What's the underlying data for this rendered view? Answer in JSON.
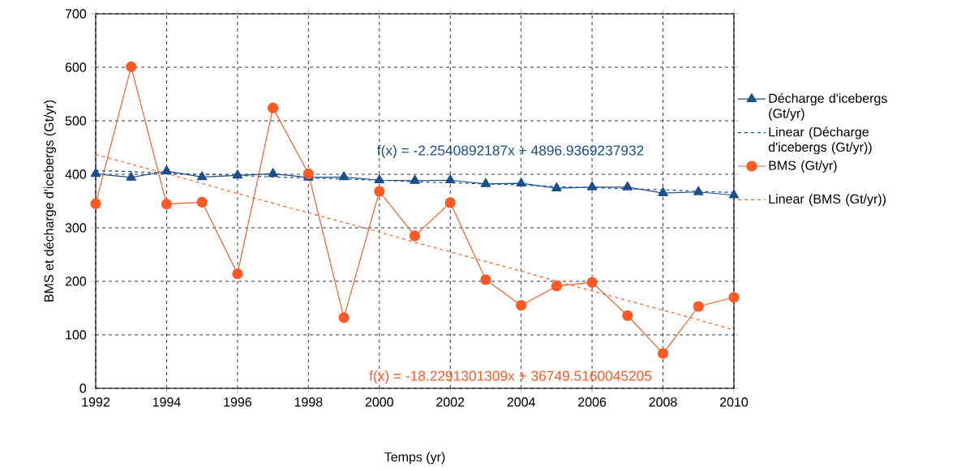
{
  "chart_data": {
    "type": "line",
    "xlabel": "Temps (yr)",
    "ylabel": "BMS et décharge d'icebergs (Gt/yr)",
    "x": [
      1992,
      1993,
      1994,
      1995,
      1996,
      1997,
      1998,
      1999,
      2000,
      2001,
      2002,
      2003,
      2004,
      2005,
      2006,
      2007,
      2008,
      2009,
      2010
    ],
    "series": [
      {
        "name": "Décharge d'icebergs (Gt/yr)",
        "color": "#1a4f8b",
        "marker": "triangle",
        "line_style": "solid",
        "values": [
          401,
          394,
          406,
          395,
          398,
          401,
          394,
          395,
          389,
          388,
          389,
          382,
          383,
          374,
          376,
          376,
          365,
          367,
          361
        ]
      },
      {
        "name": "Linear (Décharge d'icebergs (Gt/yr))",
        "color": "#1a4f8b",
        "marker": "none",
        "line_style": "dashed",
        "values": [
          407,
          405,
          402,
          400,
          398,
          395,
          393,
          391,
          389,
          386,
          384,
          382,
          380,
          377,
          375,
          373,
          371,
          368,
          366
        ]
      },
      {
        "name": "BMS (Gt/yr)",
        "color": "#ff5a26",
        "marker": "circle",
        "line_style": "solid",
        "values": [
          345,
          601,
          344,
          348,
          214,
          524,
          401,
          132,
          368,
          285,
          347,
          203,
          155,
          191,
          198,
          136,
          65,
          153,
          170
        ]
      },
      {
        "name": "Linear (BMS (Gt/yr))",
        "color": "#ff5a26",
        "marker": "none",
        "line_style": "dashed",
        "values": [
          437,
          419,
          401,
          383,
          364,
          346,
          328,
          310,
          292,
          273,
          255,
          237,
          219,
          200,
          182,
          164,
          146,
          128,
          109
        ]
      }
    ],
    "annotations": [
      "f(x) = -2.2540892187x + 4896.9369237932",
      "f(x) = -18.2291301309x + 36749.5160045205"
    ],
    "xlim": [
      1992,
      2010
    ],
    "xticks": [
      1992,
      1994,
      1996,
      1998,
      2000,
      2002,
      2004,
      2006,
      2008,
      2010
    ],
    "ylim": [
      0,
      700
    ],
    "yticks": [
      0,
      100,
      200,
      300,
      400,
      500,
      600,
      700
    ],
    "grid": true,
    "legend": "right"
  }
}
